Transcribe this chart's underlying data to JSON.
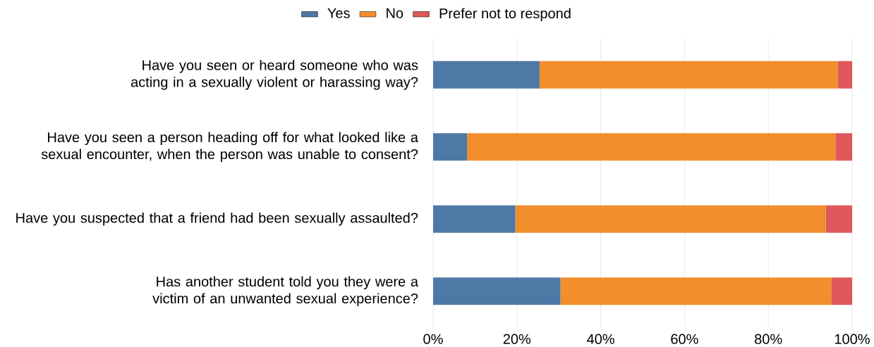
{
  "chart_data": {
    "type": "bar",
    "orientation": "horizontal",
    "stacked": true,
    "categories": [
      "Have you seen or heard someone who was acting in a sexually violent or harassing way?",
      "Have you seen a person heading off for what looked like a sexual encounter, when the person was unable to consent?",
      "Have you suspected that a friend had been sexually assaulted?",
      "Has another student told you they were a victim of an unwanted sexual experience?"
    ],
    "series": [
      {
        "name": "Yes",
        "color": "#4e78a6",
        "values": [
          25.4,
          8.1,
          19.6,
          30.4
        ]
      },
      {
        "name": "No",
        "color": "#f28e2c",
        "values": [
          71.2,
          87.9,
          74.1,
          64.6
        ]
      },
      {
        "name": "Prefer not to respond",
        "color": "#e0585b",
        "values": [
          3.4,
          4.0,
          6.3,
          5.0
        ]
      }
    ],
    "xlim": [
      0,
      100
    ],
    "xticks": [
      {
        "value": 0,
        "label": "0%"
      },
      {
        "value": 20,
        "label": "20%"
      },
      {
        "value": 40,
        "label": "40%"
      },
      {
        "value": 60,
        "label": "60%"
      },
      {
        "value": 80,
        "label": "80%"
      },
      {
        "value": 100,
        "label": "100%"
      }
    ],
    "grid": "x",
    "legend": "top"
  }
}
